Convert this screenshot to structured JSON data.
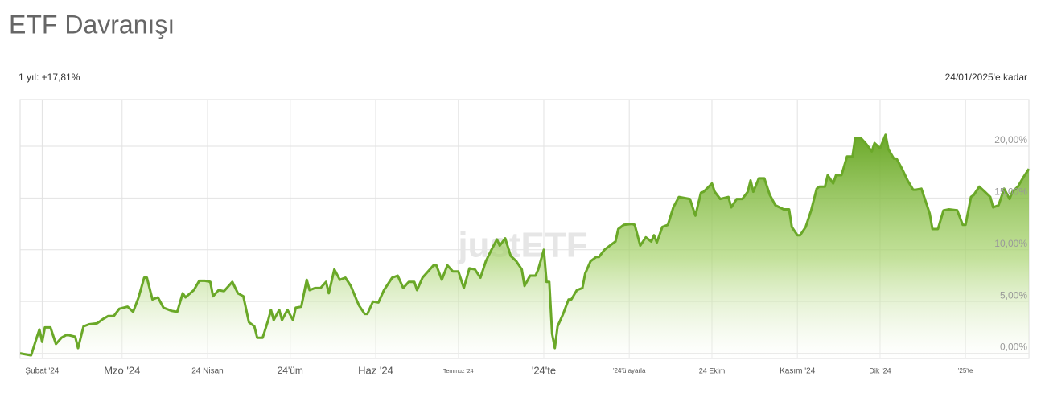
{
  "chart_data": {
    "type": "area",
    "title": "ETF Davranışı",
    "period_return": "1 yıl: +17,81%",
    "date_note": "24/01/2025'e kadar",
    "watermark": "justETF",
    "color": "#6aa828",
    "grid": true,
    "xlim": [
      0,
      366
    ],
    "ylim": [
      -0.5,
      24.5
    ],
    "xticks": [
      {
        "value": 8,
        "label": "Şubat '24"
      },
      {
        "value": 37,
        "label": "Mzo '24"
      },
      {
        "value": 68,
        "label": "24 Nisan"
      },
      {
        "value": 98,
        "label": "24'üm"
      },
      {
        "value": 129,
        "label": "Haz '24"
      },
      {
        "value": 159,
        "label": "Temmuz '24"
      },
      {
        "value": 190,
        "label": "'24'te"
      },
      {
        "value": 221,
        "label": "'24'ü ayarla"
      },
      {
        "value": 251,
        "label": "24 Ekim"
      },
      {
        "value": 282,
        "label": "Kasım '24"
      },
      {
        "value": 312,
        "label": "Dik '24"
      },
      {
        "value": 343,
        "label": "'25'te"
      }
    ],
    "yticks": [
      {
        "value": 0,
        "label": "0,00%"
      },
      {
        "value": 5,
        "label": "5,00%"
      },
      {
        "value": 10,
        "label": "10,00%"
      },
      {
        "value": 15,
        "label": "15,00%"
      },
      {
        "value": 20,
        "label": "20,00%"
      }
    ],
    "x": [
      0,
      4,
      6,
      7,
      8,
      9,
      11,
      13,
      15,
      17,
      20,
      21,
      23,
      25,
      28,
      30,
      32,
      34,
      36,
      39,
      41,
      43,
      45,
      46,
      48,
      50,
      52,
      55,
      57,
      59,
      60,
      63,
      65,
      67,
      69,
      70,
      72,
      74,
      77,
      79,
      81,
      83,
      85,
      86,
      88,
      90,
      91,
      92,
      94,
      95,
      97,
      99,
      100,
      102,
      104,
      105,
      107,
      109,
      111,
      112,
      114,
      116,
      118,
      120,
      122,
      123,
      125,
      126,
      128,
      130,
      132,
      135,
      137,
      139,
      141,
      143,
      144,
      146,
      148,
      150,
      151,
      153,
      155,
      157,
      159,
      161,
      163,
      165,
      167,
      169,
      171,
      173,
      174,
      176,
      178,
      180,
      182,
      183,
      185,
      187,
      188,
      190,
      191,
      192,
      193,
      194,
      195,
      197,
      199,
      200,
      202,
      204,
      205,
      207,
      209,
      210,
      212,
      214,
      216,
      217,
      219,
      222,
      223,
      225,
      227,
      229,
      230,
      231,
      233,
      235,
      237,
      239,
      241,
      243,
      245,
      247,
      248,
      251,
      252,
      254,
      257,
      258,
      260,
      262,
      264,
      265,
      266,
      268,
      270,
      272,
      274,
      277,
      279,
      280,
      282,
      283,
      285,
      287,
      289,
      290,
      292,
      293,
      295,
      296,
      298,
      300,
      302,
      303,
      305,
      307,
      309,
      310,
      312,
      314,
      315,
      317,
      318,
      320,
      322,
      324,
      325,
      327,
      328,
      330,
      331,
      333,
      335,
      337,
      340,
      342,
      343,
      345,
      346,
      348,
      350,
      352,
      353,
      355,
      357,
      359,
      360,
      362,
      364,
      365,
      366
    ],
    "values": [
      0,
      -0.2,
      1.5,
      2.3,
      1.1,
      2.5,
      2.5,
      0.9,
      1.5,
      1.8,
      1.6,
      0.5,
      2.6,
      2.8,
      2.9,
      3.3,
      3.6,
      3.6,
      4.3,
      4.5,
      4.0,
      5.4,
      7.3,
      7.3,
      5.2,
      5.4,
      4.4,
      4.1,
      4.0,
      5.8,
      5.4,
      6.1,
      7.0,
      7.0,
      6.9,
      5.5,
      6.1,
      6.0,
      6.9,
      5.8,
      5.5,
      3.0,
      2.6,
      1.5,
      1.5,
      3.2,
      4.2,
      3.2,
      4.2,
      3.2,
      4.2,
      3.2,
      4.4,
      4.5,
      7.1,
      6.1,
      6.3,
      6.3,
      6.9,
      5.8,
      8.1,
      7.1,
      7.3,
      6.5,
      5.2,
      4.6,
      3.8,
      3.8,
      5.0,
      4.9,
      6.1,
      7.3,
      7.5,
      6.3,
      6.9,
      6.9,
      6.1,
      7.3,
      7.9,
      8.5,
      8.5,
      7.1,
      8.5,
      7.9,
      7.9,
      6.3,
      8.2,
      8.1,
      7.3,
      8.9,
      10.0,
      11.0,
      10.4,
      11.1,
      9.4,
      8.9,
      8.1,
      6.5,
      7.5,
      7.5,
      8.1,
      10.0,
      6.9,
      6.9,
      1.9,
      0.5,
      2.6,
      3.8,
      5.2,
      5.2,
      6.1,
      6.3,
      7.7,
      8.9,
      9.3,
      9.3,
      10.0,
      10.4,
      10.8,
      12.0,
      12.4,
      12.5,
      12.4,
      10.4,
      11.2,
      10.8,
      11.4,
      10.7,
      12.2,
      12.4,
      14.1,
      15.1,
      15.0,
      14.9,
      13.3,
      15.5,
      15.6,
      16.4,
      15.6,
      14.9,
      15.1,
      14.1,
      14.9,
      14.9,
      15.6,
      16.7,
      15.6,
      16.9,
      16.9,
      15.3,
      14.3,
      13.9,
      13.9,
      12.2,
      11.4,
      11.4,
      12.2,
      13.8,
      15.9,
      16.1,
      16.1,
      17.2,
      16.4,
      17.2,
      17.2,
      19.0,
      19.0,
      20.8,
      20.8,
      20.2,
      19.5,
      20.3,
      19.8,
      21.1,
      19.7,
      18.8,
      18.8,
      17.8,
      16.7,
      15.8,
      15.8,
      15.9,
      15.1,
      13.5,
      12.0,
      12.0,
      13.8,
      13.9,
      13.8,
      12.4,
      12.4,
      15.1,
      15.3,
      16.1,
      15.6,
      15.1,
      14.1,
      14.3,
      15.9,
      14.9,
      15.6,
      16.1,
      17.0,
      17.4,
      17.81
    ]
  }
}
